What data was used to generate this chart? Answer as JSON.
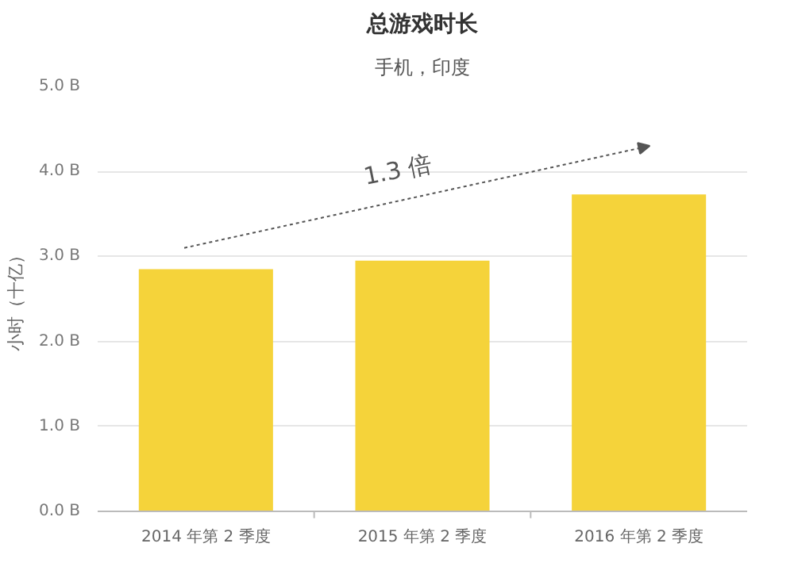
{
  "chart_data": {
    "type": "bar",
    "title": "总游戏时长",
    "subtitle": "手机，印度",
    "ylabel": "小时（十亿）",
    "categories": [
      "2014 年第 2 季度",
      "2015 年第 2 季度",
      "2016 年第 2 季度"
    ],
    "values": [
      2.85,
      2.95,
      3.73
    ],
    "color": "#f5d33a",
    "ylim": [
      0,
      5
    ],
    "yticks": [
      {
        "value": 0,
        "label": "0.0 B"
      },
      {
        "value": 1,
        "label": "1.0 B"
      },
      {
        "value": 2,
        "label": "2.0 B"
      },
      {
        "value": 3,
        "label": "3.0 B"
      },
      {
        "value": 4,
        "label": "4.0 B"
      },
      {
        "value": 5,
        "label": "5.0 B"
      }
    ],
    "grid": "y",
    "annotations": [
      "1.3 倍"
    ]
  }
}
